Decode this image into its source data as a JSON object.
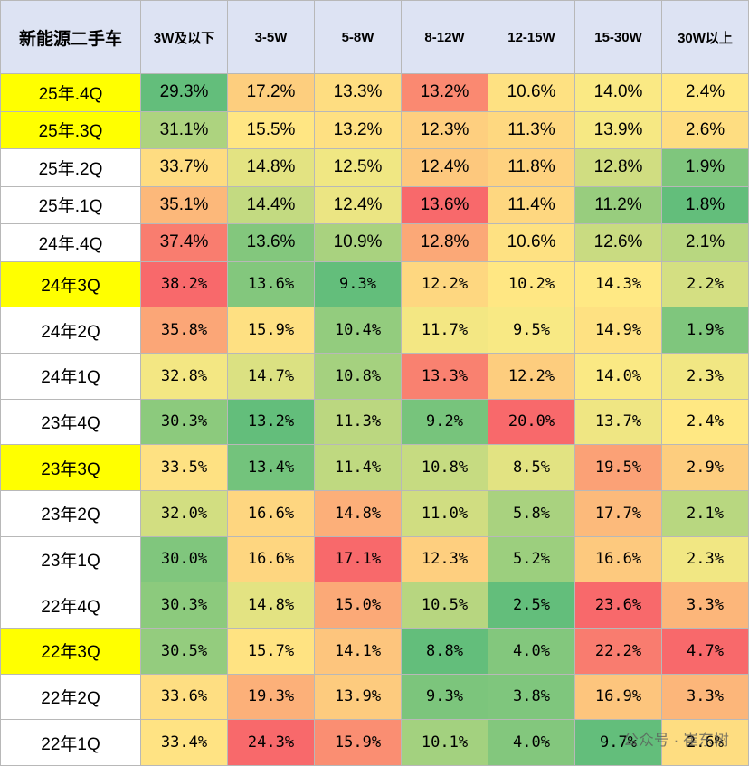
{
  "table": {
    "header": [
      "新能源二手车",
      "3W及以下",
      "3-5W",
      "5-8W",
      "8-12W",
      "12-15W",
      "15-30W",
      "30W以上"
    ],
    "rows": [
      {
        "label": "25年.4Q",
        "highlight": true,
        "cells": [
          "29.3%",
          "17.2%",
          "13.3%",
          "13.2%",
          "10.6%",
          "14.0%",
          "2.4%"
        ]
      },
      {
        "label": "25年.3Q",
        "highlight": true,
        "cells": [
          "31.1%",
          "15.5%",
          "13.2%",
          "12.3%",
          "11.3%",
          "13.9%",
          "2.6%"
        ]
      },
      {
        "label": "25年.2Q",
        "highlight": false,
        "cells": [
          "33.7%",
          "14.8%",
          "12.5%",
          "12.4%",
          "11.8%",
          "12.8%",
          "1.9%"
        ]
      },
      {
        "label": "25年.1Q",
        "highlight": false,
        "cells": [
          "35.1%",
          "14.4%",
          "12.4%",
          "13.6%",
          "11.4%",
          "11.2%",
          "1.8%"
        ]
      },
      {
        "label": "24年.4Q",
        "highlight": false,
        "cells": [
          "37.4%",
          "13.6%",
          "10.9%",
          "12.8%",
          "10.6%",
          "12.6%",
          "2.1%"
        ]
      },
      {
        "label": "24年3Q",
        "highlight": true,
        "cells": [
          "38.2%",
          "13.6%",
          "9.3%",
          "12.2%",
          "10.2%",
          "14.3%",
          "2.2%"
        ]
      },
      {
        "label": "24年2Q",
        "highlight": false,
        "cells": [
          "35.8%",
          "15.9%",
          "10.4%",
          "11.7%",
          "9.5%",
          "14.9%",
          "1.9%"
        ]
      },
      {
        "label": "24年1Q",
        "highlight": false,
        "cells": [
          "32.8%",
          "14.7%",
          "10.8%",
          "13.3%",
          "12.2%",
          "14.0%",
          "2.3%"
        ]
      },
      {
        "label": "23年4Q",
        "highlight": false,
        "cells": [
          "30.3%",
          "13.2%",
          "11.3%",
          "9.2%",
          "20.0%",
          "13.7%",
          "2.4%"
        ]
      },
      {
        "label": "23年3Q",
        "highlight": true,
        "cells": [
          "33.5%",
          "13.4%",
          "11.4%",
          "10.8%",
          "8.5%",
          "19.5%",
          "2.9%"
        ]
      },
      {
        "label": "23年2Q",
        "highlight": false,
        "cells": [
          "32.0%",
          "16.6%",
          "14.8%",
          "11.0%",
          "5.8%",
          "17.7%",
          "2.1%"
        ]
      },
      {
        "label": "23年1Q",
        "highlight": false,
        "cells": [
          "30.0%",
          "16.6%",
          "17.1%",
          "12.3%",
          "5.2%",
          "16.6%",
          "2.3%"
        ]
      },
      {
        "label": "22年4Q",
        "highlight": false,
        "cells": [
          "30.3%",
          "14.8%",
          "15.0%",
          "10.5%",
          "2.5%",
          "23.6%",
          "3.3%"
        ]
      },
      {
        "label": "22年3Q",
        "highlight": true,
        "cells": [
          "30.5%",
          "15.7%",
          "14.1%",
          "8.8%",
          "4.0%",
          "22.2%",
          "4.7%"
        ]
      },
      {
        "label": "22年2Q",
        "highlight": false,
        "cells": [
          "33.6%",
          "19.3%",
          "13.9%",
          "9.3%",
          "3.8%",
          "16.9%",
          "3.3%"
        ]
      },
      {
        "label": "22年1Q",
        "highlight": false,
        "cells": [
          "33.4%",
          "24.3%",
          "15.9%",
          "10.1%",
          "4.0%",
          "9.7%",
          "2.6%"
        ]
      }
    ]
  },
  "watermark": "公众号 · 崔东树"
}
